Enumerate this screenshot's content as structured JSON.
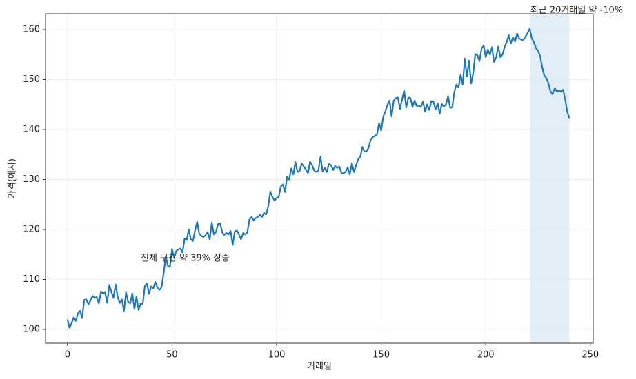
{
  "chart_data": {
    "type": "line",
    "xlabel": "거래일",
    "ylabel": "가격(예시)",
    "annotations": [
      "전체 구간 약 39% 상승",
      "최근 20거래일 약 -10%"
    ],
    "shaded_region": [
      221,
      240
    ],
    "shade_color": "#1f77b4",
    "x": [
      0,
      1,
      2,
      3,
      4,
      5,
      6,
      7,
      8,
      9,
      10,
      11,
      12,
      13,
      14,
      15,
      16,
      17,
      18,
      19,
      20,
      21,
      22,
      23,
      24,
      25,
      26,
      27,
      28,
      29,
      30,
      31,
      32,
      33,
      34,
      35,
      36,
      37,
      38,
      39,
      40,
      41,
      42,
      43,
      44,
      45,
      46,
      47,
      48,
      49,
      50,
      51,
      52,
      53,
      54,
      55,
      56,
      57,
      58,
      59,
      60,
      61,
      62,
      63,
      64,
      65,
      66,
      67,
      68,
      69,
      70,
      71,
      72,
      73,
      74,
      75,
      76,
      77,
      78,
      79,
      80,
      81,
      82,
      83,
      84,
      85,
      86,
      87,
      88,
      89,
      90,
      91,
      92,
      93,
      94,
      95,
      96,
      97,
      98,
      99,
      100,
      101,
      102,
      103,
      104,
      105,
      106,
      107,
      108,
      109,
      110,
      111,
      112,
      113,
      114,
      115,
      116,
      117,
      118,
      119,
      120,
      121,
      122,
      123,
      124,
      125,
      126,
      127,
      128,
      129,
      130,
      131,
      132,
      133,
      134,
      135,
      136,
      137,
      138,
      139,
      140,
      141,
      142,
      143,
      144,
      145,
      146,
      147,
      148,
      149,
      150,
      151,
      152,
      153,
      154,
      155,
      156,
      157,
      158,
      159,
      160,
      161,
      162,
      163,
      164,
      165,
      166,
      167,
      168,
      169,
      170,
      171,
      172,
      173,
      174,
      175,
      176,
      177,
      178,
      179,
      180,
      181,
      182,
      183,
      184,
      185,
      186,
      187,
      188,
      189,
      190,
      191,
      192,
      193,
      194,
      195,
      196,
      197,
      198,
      199,
      200,
      201,
      202,
      203,
      204,
      205,
      206,
      207,
      208,
      209,
      210,
      211,
      212,
      213,
      214,
      215,
      216,
      217,
      218,
      219,
      220,
      221,
      222,
      223,
      224,
      225,
      226,
      227,
      228,
      229,
      230,
      231,
      232,
      233,
      234,
      235,
      236,
      237,
      238,
      239,
      240
    ],
    "series": [
      {
        "color": "#1f77b4",
        "values": [
          102.0,
          100.3,
          101.3,
          102.4,
          101.7,
          103.2,
          103.7,
          102.3,
          105.9,
          106.0,
          105.0,
          105.8,
          106.7,
          106.3,
          106.5,
          105.2,
          107.5,
          107.2,
          107.4,
          105.3,
          108.9,
          107.5,
          106.3,
          109.0,
          106.5,
          105.3,
          106.0,
          103.6,
          107.4,
          105.5,
          105.2,
          107.2,
          104.1,
          106.6,
          103.9,
          105.2,
          105.1,
          108.7,
          109.2,
          107.1,
          108.6,
          108.2,
          109.5,
          108.4,
          107.9,
          108.5,
          111.3,
          114.6,
          112.7,
          112.5,
          116.1,
          114.3,
          115.7,
          116.0,
          116.2,
          115.4,
          118.2,
          117.9,
          120.0,
          118.0,
          117.7,
          119.8,
          121.5,
          119.2,
          118.7,
          118.5,
          118.8,
          119.5,
          118.0,
          121.4,
          119.0,
          119.5,
          121.1,
          121.2,
          119.4,
          118.9,
          119.3,
          119.0,
          119.7,
          116.9,
          119.6,
          119.8,
          119.0,
          118.0,
          119.3,
          119.0,
          119.4,
          122.0,
          122.5,
          121.8,
          122.3,
          122.5,
          122.9,
          122.5,
          123.3,
          123.0,
          124.6,
          127.6,
          126.5,
          125.8,
          126.3,
          126.5,
          128.6,
          129.0,
          127.5,
          130.5,
          130.0,
          132.2,
          131.0,
          133.5,
          131.5,
          131.7,
          133.2,
          132.6,
          132.0,
          131.3,
          133.6,
          132.8,
          131.8,
          131.5,
          131.8,
          134.6,
          131.6,
          132.3,
          131.5,
          133.1,
          132.9,
          131.9,
          132.7,
          132.3,
          132.6,
          131.3,
          131.2,
          131.6,
          132.4,
          131.0,
          133.3,
          131.5,
          132.8,
          134.1,
          134.5,
          136.5,
          135.6,
          135.6,
          136.4,
          138.0,
          138.5,
          138.7,
          139.0,
          141.3,
          139.8,
          142.6,
          143.6,
          144.9,
          145.8,
          142.6,
          145.8,
          146.3,
          146.4,
          144.1,
          146.0,
          147.8,
          144.4,
          146.4,
          146.3,
          144.5,
          145.8,
          144.7,
          144.8,
          144.5,
          145.6,
          143.6,
          145.0,
          143.9,
          145.7,
          145.6,
          144.0,
          145.2,
          143.2,
          145.1,
          144.6,
          145.0,
          146.7,
          144.3,
          144.5,
          147.6,
          149.0,
          148.4,
          151.0,
          149.0,
          154.2,
          150.6,
          153.8,
          149.2,
          151.2,
          155.1,
          154.9,
          153.7,
          156.2,
          156.8,
          154.5,
          156.0,
          155.0,
          156.5,
          153.5,
          154.5,
          156.6,
          154.5,
          155.0,
          156.5,
          157.5,
          158.9,
          157.2,
          158.5,
          157.6,
          159.2,
          158.2,
          158.0,
          157.9,
          158.6,
          159.3,
          160.2,
          158.3,
          157.5,
          156.3,
          155.8,
          154.7,
          152.5,
          150.8,
          150.3,
          149.2,
          147.6,
          147.1,
          148.3,
          147.6,
          147.8,
          147.6,
          148.0,
          146.0,
          143.5,
          142.3
        ]
      }
    ],
    "xlim": [
      -10.5,
      251.4
    ],
    "xticks": [
      0,
      50,
      100,
      150,
      200,
      250
    ],
    "ylim": [
      97.24,
      163.17
    ],
    "yticks": [
      100,
      110,
      120,
      130,
      140,
      150,
      160
    ],
    "grid": true
  }
}
